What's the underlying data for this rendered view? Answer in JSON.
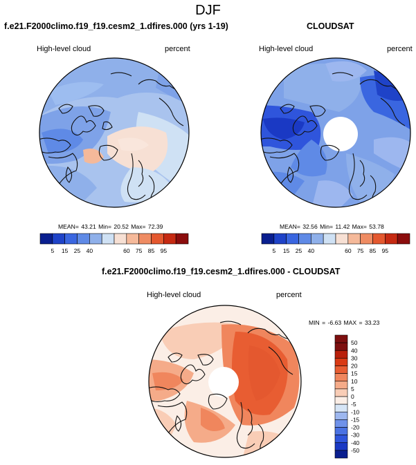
{
  "page": {
    "title": "DJF"
  },
  "panels": [
    {
      "title": "f.e21.F2000climo.f19_f19.cesm2_1.dfires.000 (yrs 1-19)",
      "variable": "High-level cloud",
      "units": "percent",
      "stats": "MEAN=  43.21  Min=  20.52  Max=  72.39"
    },
    {
      "title": "CLOUDSAT",
      "variable": "High-level cloud",
      "units": "percent",
      "stats": "MEAN=  32.56  Min=  11.42  Max=  53.78"
    },
    {
      "title": "f.e21.F2000climo.f19_f19.cesm2_1.dfires.000 - CLOUDSAT",
      "variable": "High-level cloud",
      "units": "percent",
      "stats": "MIN =  -6.63 MAX =  33.23"
    }
  ],
  "colors": {
    "abs_scale": [
      "#0a1f8f",
      "#1f43c8",
      "#3a66e0",
      "#5f8ae6",
      "#8fb0ea",
      "#cfe1f4",
      "#f7e0d4",
      "#f5b99a",
      "#ef8c63",
      "#e4582f",
      "#c62a12",
      "#8b0d0d"
    ],
    "diff_scale": [
      "#0a1f8f",
      "#1a39c4",
      "#2f55dc",
      "#4a72e3",
      "#6f92ea",
      "#9db7ef",
      "#d6e5f6",
      "#fbeee6",
      "#f9cdb6",
      "#f5ab89",
      "#f0865d",
      "#e85d32",
      "#d93a14",
      "#b9200b",
      "#7d0f0f"
    ],
    "coast": "#111111",
    "pole_hole": "#ffffff"
  },
  "chart_data": [
    {
      "type": "heatmap",
      "projection": "north-polar-stereographic",
      "title": "f.e21.F2000climo.f19_f19.cesm2_1.dfires.000 (yrs 1-19)",
      "variable": "High-level cloud",
      "units": "percent",
      "mean": 43.21,
      "min": 20.52,
      "max": 72.39,
      "levels": [
        5,
        15,
        25,
        40,
        60,
        75,
        85,
        95
      ],
      "colorbar": "horizontal"
    },
    {
      "type": "heatmap",
      "projection": "north-polar-stereographic",
      "title": "CLOUDSAT",
      "variable": "High-level cloud",
      "units": "percent",
      "mean": 32.56,
      "min": 11.42,
      "max": 53.78,
      "levels": [
        5,
        15,
        25,
        40,
        60,
        75,
        85,
        95
      ],
      "colorbar": "horizontal"
    },
    {
      "type": "heatmap",
      "projection": "north-polar-stereographic",
      "title": "f.e21.F2000climo.f19_f19.cesm2_1.dfires.000 - CLOUDSAT",
      "variable": "High-level cloud",
      "units": "percent",
      "min": -6.63,
      "max": 33.23,
      "levels": [
        50,
        40,
        30,
        20,
        15,
        10,
        5,
        0,
        -5,
        -10,
        -15,
        -20,
        -30,
        -40,
        -50
      ],
      "colorbar": "vertical"
    }
  ]
}
